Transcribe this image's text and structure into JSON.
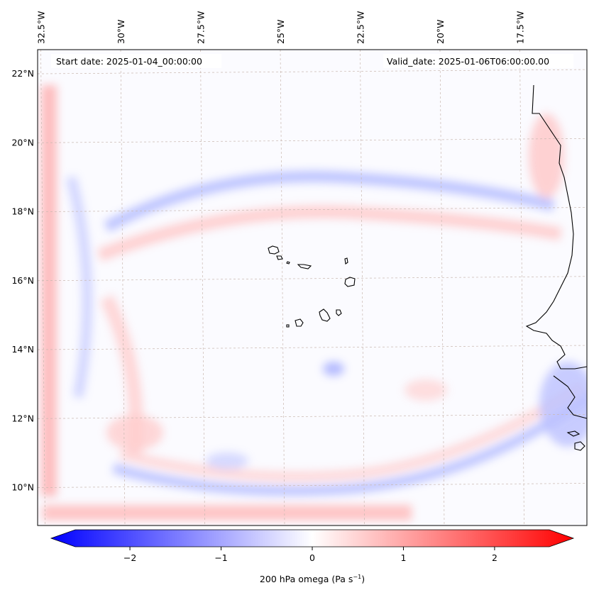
{
  "map": {
    "start_date_label": "Start date: 2025-01-04_00:00:00",
    "valid_date_label": "Valid_date: 2025-01-06T06:00:00.00",
    "lon_labels": [
      "32.5°W",
      "30°W",
      "27.5°W",
      "25°W",
      "22.5°W",
      "20°W",
      "17.5°W"
    ],
    "lat_labels": [
      "22°N",
      "20°N",
      "18°N",
      "16°N",
      "14°N",
      "12°N",
      "10°N"
    ],
    "lon_values": [
      -32.5,
      -30,
      -27.5,
      -25,
      -22.5,
      -20,
      -17.5
    ],
    "lat_values": [
      22,
      20,
      18,
      16,
      14,
      12,
      10
    ],
    "extent": {
      "lon_min": -32.6,
      "lon_max": -15.4,
      "lat_min": 8.9,
      "lat_max": 22.7
    },
    "variable": "200 hPa omega",
    "units": "Pa s",
    "units_exponent": "−1"
  },
  "colorbar": {
    "min": -2.6,
    "max": 2.6,
    "ticks": [
      -2,
      -1,
      0,
      1,
      2
    ],
    "tick_labels": [
      "−2",
      "−1",
      "0",
      "1",
      "2"
    ],
    "colormap": "bwr",
    "extend": "both",
    "colors": {
      "negative": "#0000ff",
      "zero": "#ffffff",
      "positive": "#ff0000"
    }
  }
}
